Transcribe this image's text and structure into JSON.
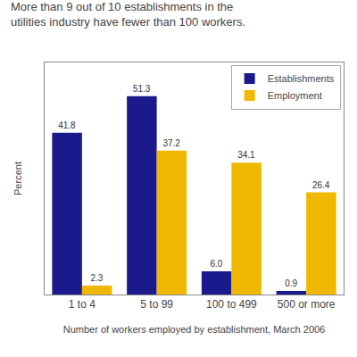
{
  "chart_data": {
    "type": "bar",
    "title": "More than 9 out of 10 establishments in the utilities industry have fewer than 100 workers.",
    "ylabel": "Percent",
    "xlabel": "Number of workers employed by establishment, March 2006",
    "categories": [
      "1 to 4",
      "5 to 99",
      "100 to 499",
      "500 or more"
    ],
    "series": [
      {
        "name": "Establishments",
        "color": "#1a1a8c",
        "values": [
          41.8,
          51.3,
          6.0,
          0.9
        ],
        "value_labels": [
          "41.8",
          "51.3",
          "6.0",
          "0.9"
        ]
      },
      {
        "name": "Employment",
        "color": "#f0b800",
        "values": [
          2.3,
          37.2,
          34.1,
          26.4
        ],
        "value_labels": [
          "2.3",
          "37.2",
          "34.1",
          "26.4"
        ]
      }
    ],
    "ylim": [
      0,
      60
    ],
    "yticks": [],
    "grid": false,
    "legend": "upper right",
    "data_labels": true,
    "tick_labels": "x"
  }
}
